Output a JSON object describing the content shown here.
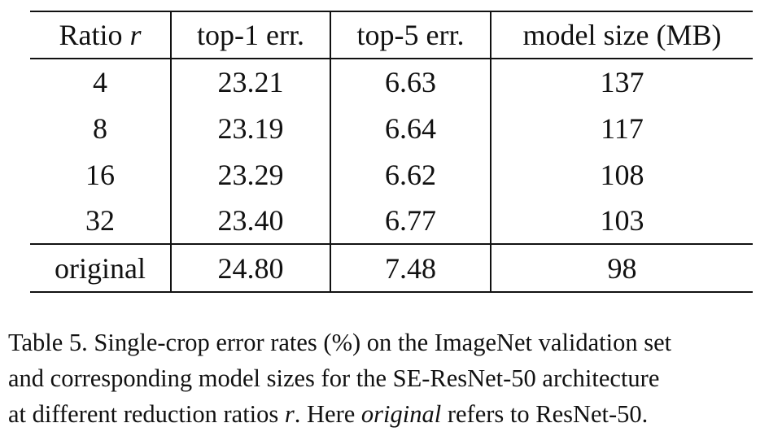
{
  "table": {
    "headers": {
      "ratio_label": "Ratio",
      "ratio_var": "r",
      "top1": "top-1 err.",
      "top5": "top-5 err.",
      "size": "model size (MB)"
    },
    "rows": [
      {
        "ratio": "4",
        "top1": "23.21",
        "top5": "6.63",
        "size": "137"
      },
      {
        "ratio": "8",
        "top1": "23.19",
        "top5": "6.64",
        "size": "117"
      },
      {
        "ratio": "16",
        "top1": "23.29",
        "top5": "6.62",
        "size": "108"
      },
      {
        "ratio": "32",
        "top1": "23.40",
        "top5": "6.77",
        "size": "103"
      }
    ],
    "original_row": {
      "ratio": "original",
      "top1": "24.80",
      "top5": "7.48",
      "size": "98"
    }
  },
  "caption": {
    "line1": "Table 5. Single-crop error rates (%) on the ImageNet validation set",
    "line2": "and corresponding model sizes for the SE-ResNet-50 architecture",
    "line3_a": "at different reduction ratios ",
    "line3_var": "r",
    "line3_b": ". Here ",
    "line3_em": "original",
    "line3_c": " refers to ResNet-50."
  }
}
